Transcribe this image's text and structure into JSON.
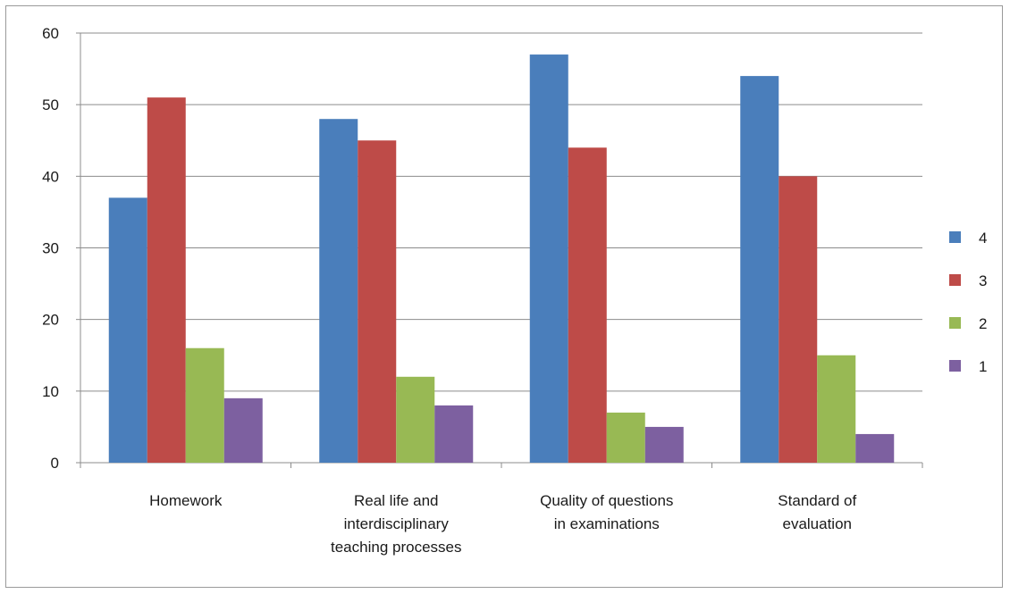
{
  "chart_data": {
    "type": "bar",
    "title": "",
    "xlabel": "",
    "ylabel": "",
    "ylim": [
      0,
      60
    ],
    "yticks": [
      0,
      10,
      20,
      30,
      40,
      50,
      60
    ],
    "grid": true,
    "legend_position": "right",
    "categories": [
      [
        "Homework"
      ],
      [
        "Real life and",
        "interdisciplinary",
        "teaching processes"
      ],
      [
        "Quality of questions",
        "in examinations"
      ],
      [
        "Standard of",
        "evaluation"
      ]
    ],
    "series": [
      {
        "name": "4",
        "color": "#4a7ebb",
        "values": [
          37,
          48,
          57,
          54
        ]
      },
      {
        "name": "3",
        "color": "#be4b48",
        "values": [
          51,
          45,
          44,
          40
        ]
      },
      {
        "name": "2",
        "color": "#98b954",
        "values": [
          16,
          12,
          7,
          15
        ]
      },
      {
        "name": "1",
        "color": "#7d60a0",
        "values": [
          9,
          8,
          5,
          4
        ]
      }
    ]
  }
}
